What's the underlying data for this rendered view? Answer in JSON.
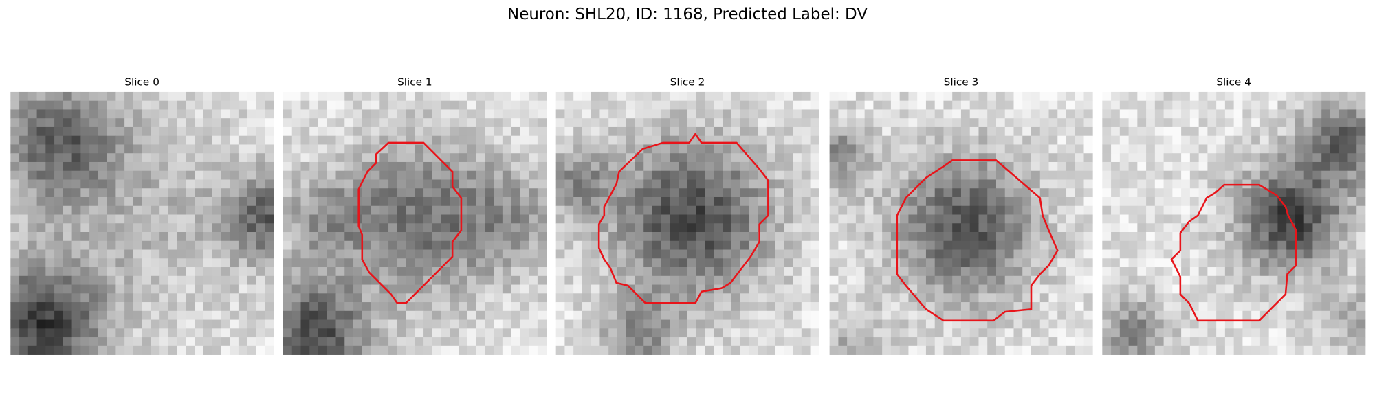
{
  "title": "Neuron: SHL20, ID: 1168, Predicted Label: DV",
  "panels": [
    {
      "title": "Slice 0"
    },
    {
      "title": "Slice 1"
    },
    {
      "title": "Slice 2"
    },
    {
      "title": "Slice 3"
    },
    {
      "title": "Slice 4"
    }
  ]
}
